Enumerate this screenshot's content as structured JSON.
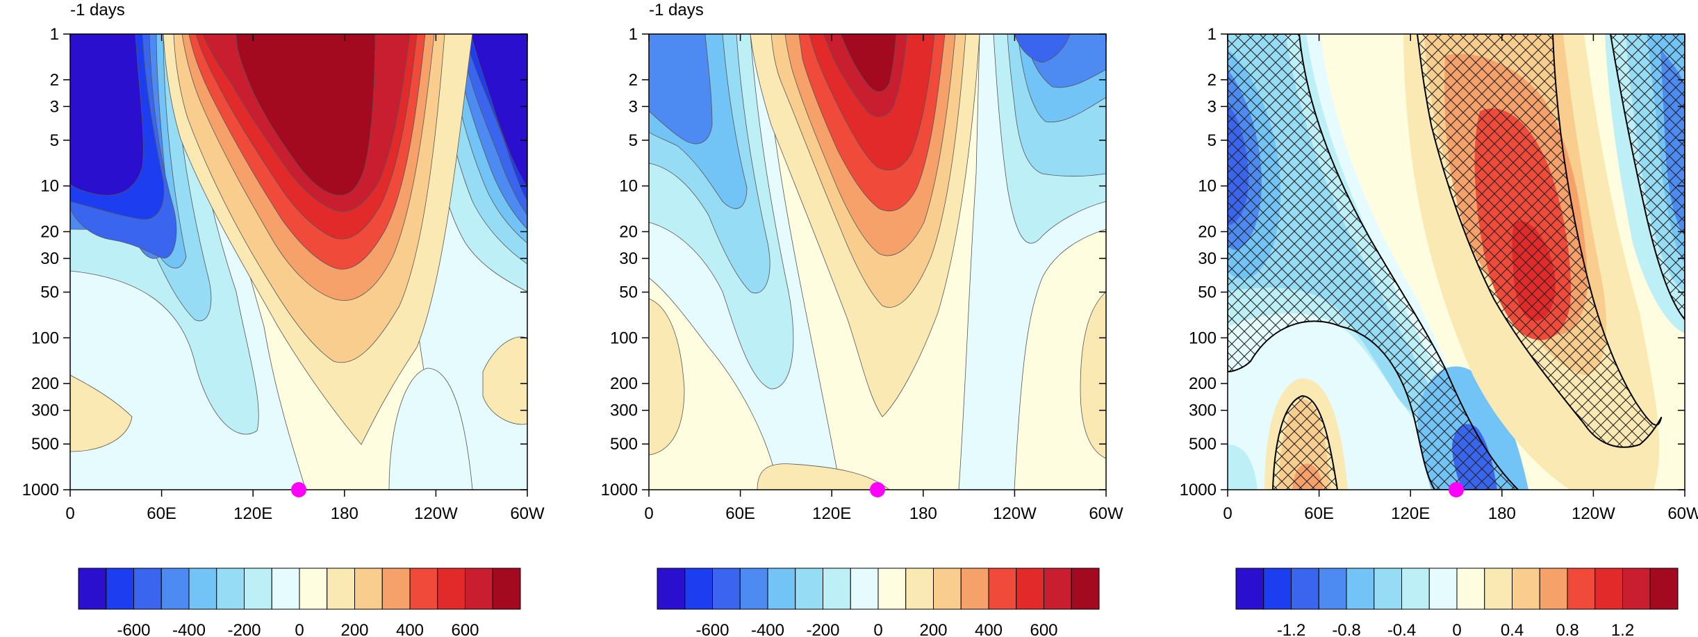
{
  "chart_data": [
    {
      "type": "heatmap",
      "title": "-1 days",
      "x_ticks": [
        "0",
        "60E",
        "120E",
        "180",
        "120W",
        "60W"
      ],
      "y_ticks": [
        "1",
        "2",
        "3",
        "5",
        "10",
        "20",
        "30",
        "50",
        "100",
        "200",
        "300",
        "500",
        "1000"
      ],
      "y_scale": "log",
      "y_reversed": true,
      "marker": {
        "x": 150,
        "y": 1000,
        "color": "#ff00ff"
      },
      "colorbar": {
        "colors": [
          "#2b0fcf",
          "#1d3ef0",
          "#3a66ef",
          "#4d8af1",
          "#72c3f6",
          "#97dcf5",
          "#bdeff6",
          "#e6fbfd",
          "#fefde0",
          "#fbe9b3",
          "#f9cd8d",
          "#f7a16a",
          "#f04a3a",
          "#e32a2a",
          "#c91e2f",
          "#a3091f"
        ],
        "labels": [
          "-600",
          "-400",
          "-200",
          "0",
          "200",
          "400",
          "600"
        ]
      }
    },
    {
      "type": "heatmap",
      "title": "-1 days",
      "x_ticks": [
        "0",
        "60E",
        "120E",
        "180",
        "120W",
        "60W"
      ],
      "y_ticks": [
        "1",
        "2",
        "3",
        "5",
        "10",
        "20",
        "30",
        "50",
        "100",
        "200",
        "300",
        "500",
        "1000"
      ],
      "y_scale": "log",
      "y_reversed": true,
      "marker": {
        "x": 150,
        "y": 1000,
        "color": "#ff00ff"
      },
      "colorbar": {
        "colors": [
          "#2b0fcf",
          "#1d3ef0",
          "#3a66ef",
          "#4d8af1",
          "#72c3f6",
          "#97dcf5",
          "#bdeff6",
          "#e6fbfd",
          "#fefde0",
          "#fbe9b3",
          "#f9cd8d",
          "#f7a16a",
          "#f04a3a",
          "#e32a2a",
          "#c91e2f",
          "#a3091f"
        ],
        "labels": [
          "-600",
          "-400",
          "-200",
          "0",
          "200",
          "400",
          "600"
        ]
      }
    },
    {
      "type": "heatmap",
      "title": "",
      "x_ticks": [
        "0",
        "60E",
        "120E",
        "180",
        "120W",
        "60W"
      ],
      "y_ticks": [
        "1",
        "2",
        "3",
        "5",
        "10",
        "20",
        "30",
        "50",
        "100",
        "200",
        "300",
        "500",
        "1000"
      ],
      "y_scale": "log",
      "y_reversed": true,
      "hatching": "significance regions",
      "marker": {
        "x": 150,
        "y": 1000,
        "color": "#ff00ff"
      },
      "colorbar": {
        "colors": [
          "#2b0fcf",
          "#1d3ef0",
          "#3a66ef",
          "#4d8af1",
          "#72c3f6",
          "#97dcf5",
          "#bdeff6",
          "#e6fbfd",
          "#fefde0",
          "#fbe9b3",
          "#f9cd8d",
          "#f7a16a",
          "#f04a3a",
          "#e32a2a",
          "#c91e2f",
          "#a3091f"
        ],
        "labels": [
          "-1.2",
          "-0.8",
          "-0.4",
          "0",
          "0.4",
          "0.8",
          "1.2"
        ]
      }
    }
  ]
}
